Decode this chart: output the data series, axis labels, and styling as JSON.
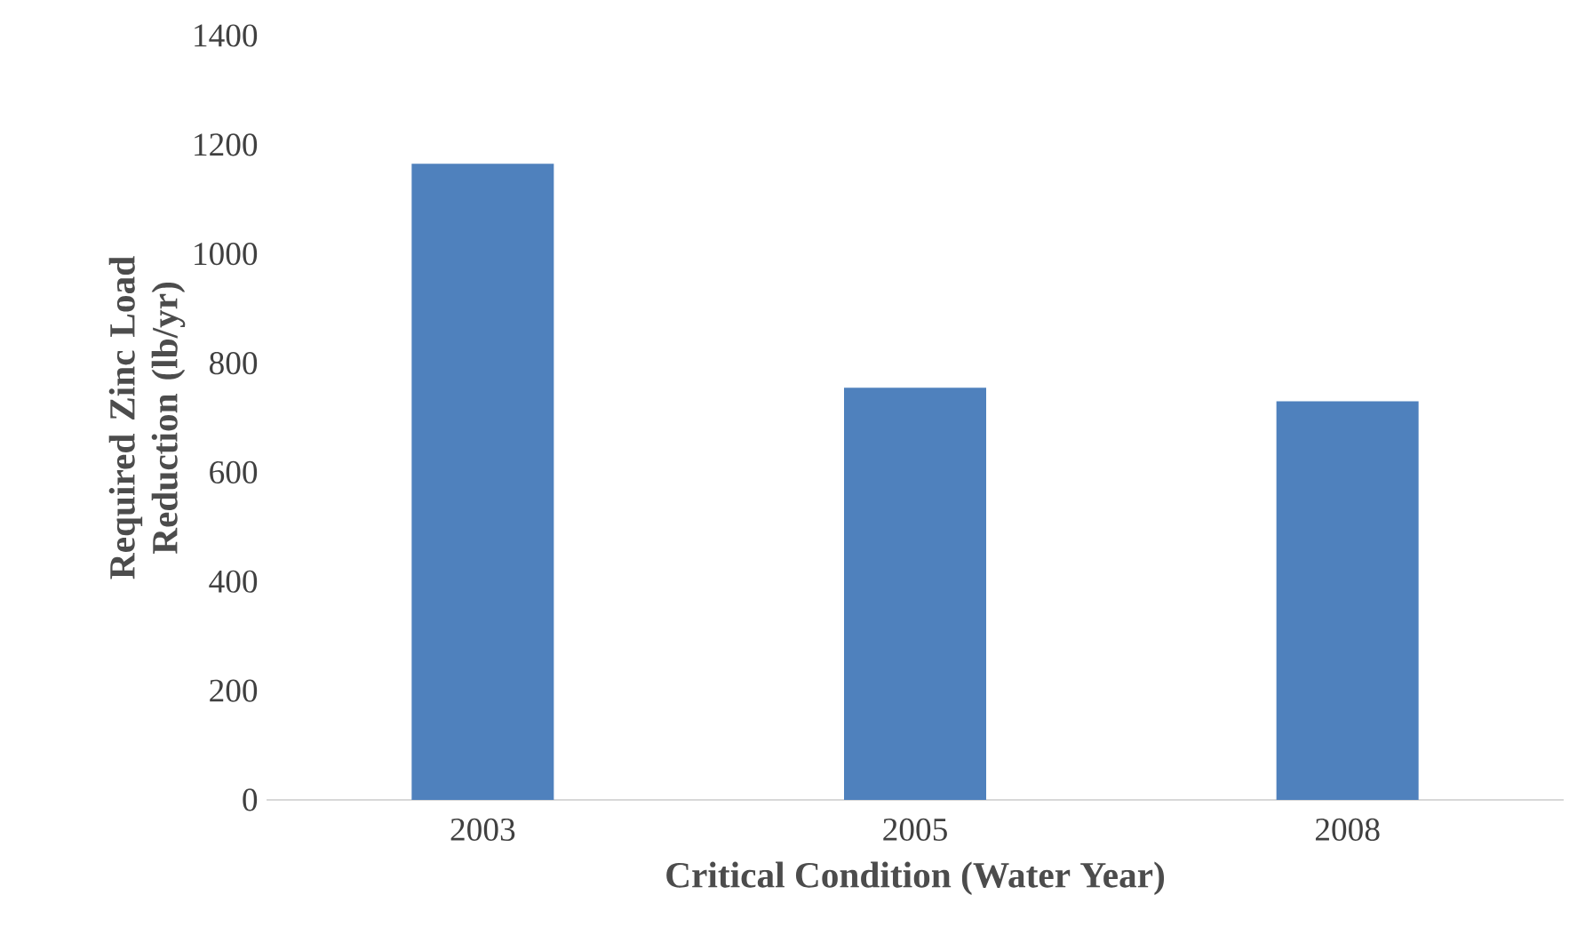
{
  "chart_data": {
    "type": "bar",
    "xlabel": "Critical Condition (Water Year)",
    "ylabel": "Required Zinc Load Reduction (lb/yr)",
    "categories": [
      "2003",
      "2005",
      "2008"
    ],
    "values": [
      1165,
      755,
      730
    ],
    "color": "#4f81bd",
    "ylim": [
      0,
      1400
    ],
    "yticks": [
      0,
      200,
      400,
      600,
      800,
      1000,
      1200,
      1400
    ]
  }
}
